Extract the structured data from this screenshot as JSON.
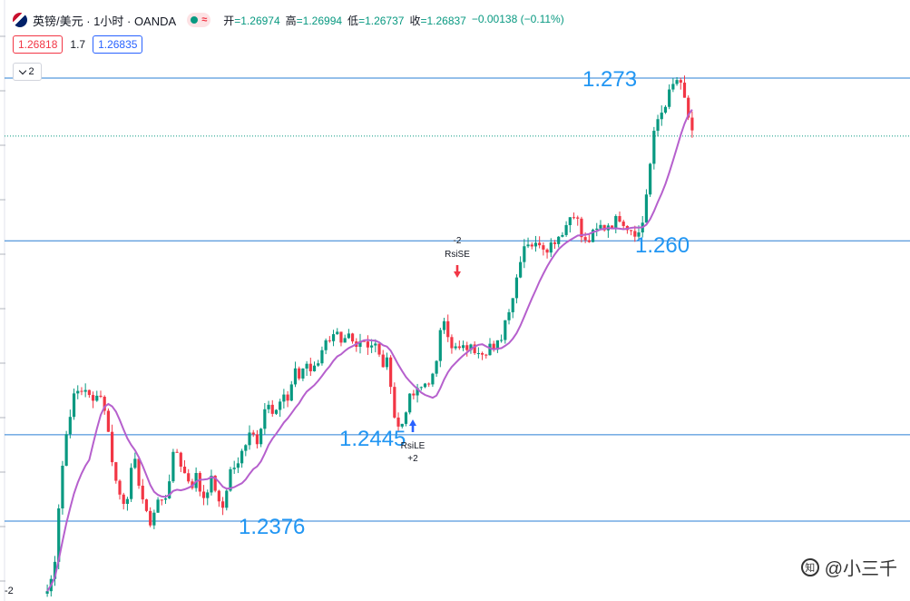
{
  "header": {
    "title": "英镑/美元 · 1小时 · OANDA",
    "badge_symbol": "≈",
    "ohlc": [
      {
        "label": "开",
        "value": "=1.26974"
      },
      {
        "label": "高",
        "value": "=1.26994"
      },
      {
        "label": "低",
        "value": "=1.26737"
      },
      {
        "label": "收",
        "value": "=1.26837"
      },
      {
        "label": "",
        "value": "−0.00138 (−0.11%)"
      }
    ]
  },
  "trade": {
    "sell": "1.26818",
    "spread": "1.7",
    "buy": "1.26835"
  },
  "indicator_toggle": {
    "count": "2"
  },
  "watermark": {
    "text": "@小三千"
  },
  "bottom_label": "-2",
  "colors": {
    "up": "#089981",
    "down": "#f23645",
    "ma": "#b660cd",
    "level": "#2a7fd4",
    "label": "#2196f3"
  },
  "chart_data": {
    "type": "candlestick",
    "price_range": [
      1.232,
      1.274
    ],
    "horizontal_levels": [
      {
        "price": 1.273,
        "label": "1.273"
      },
      {
        "price": 1.26,
        "label": "1.260"
      },
      {
        "price": 1.2445,
        "label": "1.2445"
      },
      {
        "price": 1.2376,
        "label": "1.2376"
      }
    ],
    "last_price": 1.26837,
    "signals": [
      {
        "type": "sell",
        "name": "RsiSE",
        "qty": "-2",
        "price": 1.254
      },
      {
        "type": "buy",
        "name": "RsiLE",
        "qty": "+2",
        "price": 1.245
      }
    ],
    "close_path": [
      1.232,
      1.233,
      1.235,
      1.24,
      1.243,
      1.2455,
      1.247,
      1.248,
      1.2478,
      1.2485,
      1.2475,
      1.247,
      1.248,
      1.2475,
      1.2465,
      1.244,
      1.242,
      1.24,
      1.2395,
      1.239,
      1.241,
      1.2425,
      1.241,
      1.2395,
      1.238,
      1.2375,
      1.2385,
      1.2395,
      1.239,
      1.24,
      1.242,
      1.2435,
      1.2425,
      1.2415,
      1.241,
      1.2405,
      1.2412,
      1.24,
      1.2395,
      1.2405,
      1.241,
      1.2398,
      1.238,
      1.2395,
      1.2415,
      1.242,
      1.2418,
      1.243,
      1.244,
      1.245,
      1.2445,
      1.244,
      1.246,
      1.247,
      1.2465,
      1.2455,
      1.247,
      1.248,
      1.247,
      1.2485,
      1.2495,
      1.249,
      1.25,
      1.2505,
      1.2495,
      1.25,
      1.251,
      1.252,
      1.2515,
      1.252,
      1.2525,
      1.2515,
      1.252,
      1.2525,
      1.2518,
      1.252,
      1.2522,
      1.252,
      1.2515,
      1.252,
      1.251,
      1.25,
      1.2505,
      1.249,
      1.246,
      1.245,
      1.2455,
      1.247,
      1.2475,
      1.2478,
      1.248,
      1.2485,
      1.2488,
      1.249,
      1.2495,
      1.253,
      1.254,
      1.2525,
      1.251,
      1.2515,
      1.2512,
      1.2514,
      1.2516,
      1.2512,
      1.2515,
      1.2513,
      1.2512,
      1.2518,
      1.251,
      1.2518,
      1.2525,
      1.254,
      1.255,
      1.256,
      1.258,
      1.2595,
      1.26,
      1.2598,
      1.2595,
      1.26,
      1.2596,
      1.2595,
      1.2598,
      1.2602,
      1.2605,
      1.261,
      1.2615,
      1.2625,
      1.262,
      1.2605,
      1.2598,
      1.26,
      1.2605,
      1.2608,
      1.2612,
      1.261,
      1.2615,
      1.2612,
      1.262,
      1.2618,
      1.2612,
      1.261,
      1.2608,
      1.2605,
      1.2615,
      1.264,
      1.2665,
      1.269,
      1.27,
      1.2705,
      1.2715,
      1.272,
      1.273,
      1.2725,
      1.2715,
      1.27,
      1.2684
    ]
  }
}
